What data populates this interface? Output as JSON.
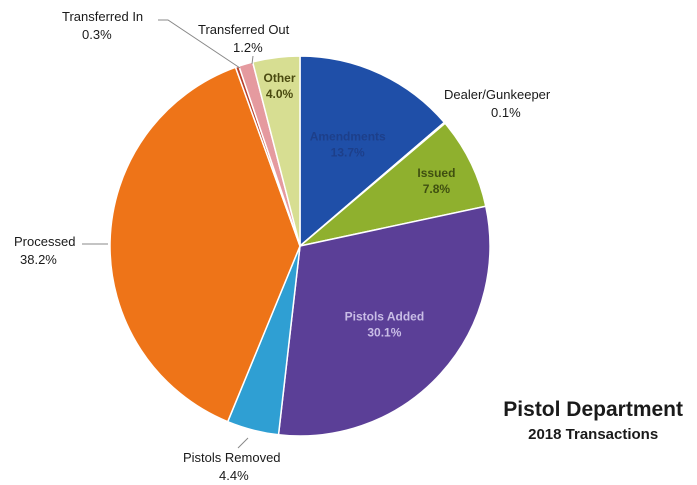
{
  "chart_data": {
    "type": "pie",
    "title": "Pistol Department",
    "subtitle": "2018 Transactions",
    "slices": [
      {
        "name": "Amendments",
        "value": 13.7,
        "value_label": "13.7%",
        "color": "#1f4fa8",
        "label_inside": true,
        "inside_color": "#1d3f8a"
      },
      {
        "name": "Dealer/Gunkeeper",
        "value": 0.1,
        "value_label": "0.1%",
        "color": "#2a5cc0",
        "label_inside": false
      },
      {
        "name": "Issued",
        "value": 7.8,
        "value_label": "7.8%",
        "color": "#8fb02e",
        "label_inside": true,
        "inside_color": "#3f4f10"
      },
      {
        "name": "Pistols Added",
        "value": 30.1,
        "value_label": "30.1%",
        "color": "#5b3f97",
        "label_inside": true,
        "inside_color": "#c9bde6"
      },
      {
        "name": "Pistols Removed",
        "value": 4.4,
        "value_label": "4.4%",
        "color": "#2f9fd3",
        "label_inside": false
      },
      {
        "name": "Processed",
        "value": 38.2,
        "value_label": "38.2%",
        "color": "#ee7418",
        "label_inside": false
      },
      {
        "name": "Transferred In",
        "value": 0.3,
        "value_label": "0.3%",
        "color": "#b8402b",
        "label_inside": false
      },
      {
        "name": "Transferred Out",
        "value": 1.2,
        "value_label": "1.2%",
        "color": "#e59a9f",
        "label_inside": false
      },
      {
        "name": "Other",
        "value": 4.0,
        "value_label": "4.0%",
        "color": "#d7de92",
        "label_inside": true,
        "inside_color": "#4a4a10"
      }
    ]
  }
}
